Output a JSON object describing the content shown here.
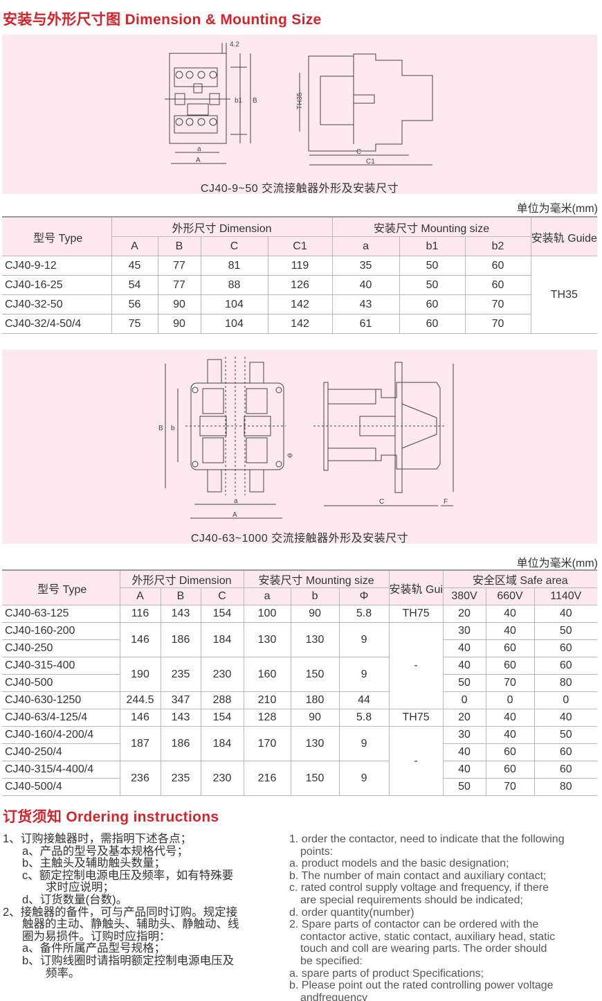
{
  "section1": {
    "title": "安装与外形尺寸图 Dimension & Mounting Size",
    "diagram1": {
      "caption": "CJ40-9~50 交流接触器外形及安装尺寸",
      "labels": {
        "dim_42": "4.2",
        "b1": "b1",
        "B": "B",
        "a": "a",
        "A": "A",
        "TH35": "TH35",
        "C": "C",
        "C1": "C1"
      }
    },
    "unit": "单位为毫米(mm)",
    "table1": {
      "header_type": "型号 Type",
      "header_dimension": "外形尺寸 Dimension",
      "header_mounting": "安装尺寸 Mounting size",
      "header_guide": "安装轨 Guide",
      "sub": [
        "A",
        "B",
        "C",
        "C1",
        "a",
        "b1",
        "b2"
      ],
      "rows": [
        [
          "CJ40-9-12",
          "45",
          "77",
          "81",
          "119",
          "35",
          "50",
          "60"
        ],
        [
          "CJ40-16-25",
          "54",
          "77",
          "88",
          "126",
          "40",
          "50",
          "60"
        ],
        [
          "CJ40-32-50",
          "56",
          "90",
          "104",
          "142",
          "43",
          "60",
          "70"
        ],
        [
          "CJ40-32/4-50/4",
          "75",
          "90",
          "104",
          "142",
          "61",
          "60",
          "70"
        ]
      ],
      "guide": "TH35"
    }
  },
  "section2": {
    "diagram2": {
      "caption": "CJ40-63~1000 交流接触器外形及安装尺寸",
      "labels": {
        "B": "B",
        "b": "b",
        "phi": "Φ",
        "a": "a",
        "A": "A",
        "C": "C",
        "F": "F"
      }
    },
    "unit": "单位为毫米(mm)",
    "table2": {
      "header_type": "型号 Type",
      "header_dimension": "外形尺寸 Dimension",
      "header_mounting": "安装尺寸 Mounting size",
      "header_guide": "安装轨 Guide",
      "header_safe": "安全区域 Safe area",
      "sub": [
        "A",
        "B",
        "C",
        "a",
        "b",
        "Φ",
        "380V",
        "660V",
        "1140V"
      ],
      "models": [
        "CJ40-63-125",
        "CJ40-160-200",
        "CJ40-250",
        "CJ40-315-400",
        "CJ40-500",
        "CJ40-630-1250",
        "CJ40-63/4-125/4",
        "CJ40-160/4-200/4",
        "CJ40-250/4",
        "CJ40-315/4-400/4",
        "CJ40-500/4"
      ],
      "dim_groups": [
        {
          "span": 1,
          "values": [
            "116",
            "143",
            "154",
            "100",
            "90",
            "5.8"
          ]
        },
        {
          "span": 2,
          "values": [
            "146",
            "186",
            "184",
            "130",
            "130",
            "9"
          ]
        },
        {
          "span": 2,
          "values": [
            "190",
            "235",
            "230",
            "160",
            "150",
            "9"
          ]
        },
        {
          "span": 1,
          "values": [
            "244.5",
            "347",
            "288",
            "210",
            "180",
            "44"
          ]
        },
        {
          "span": 1,
          "values": [
            "146",
            "143",
            "154",
            "128",
            "90",
            "5.8"
          ]
        },
        {
          "span": 2,
          "values": [
            "187",
            "186",
            "184",
            "170",
            "130",
            "9"
          ]
        },
        {
          "span": 2,
          "values": [
            "236",
            "235",
            "230",
            "216",
            "150",
            "9"
          ]
        }
      ],
      "guide_groups": [
        {
          "span": 1,
          "value": "TH75"
        },
        {
          "span": 5,
          "value": "-"
        },
        {
          "span": 1,
          "value": "TH75"
        },
        {
          "span": 4,
          "value": "-"
        }
      ],
      "safe": [
        [
          "20",
          "40",
          "40"
        ],
        [
          "30",
          "40",
          "50"
        ],
        [
          "40",
          "60",
          "60"
        ],
        [
          "40",
          "60",
          "60"
        ],
        [
          "50",
          "70",
          "80"
        ],
        [
          "0",
          "0",
          "0"
        ],
        [
          "20",
          "40",
          "40"
        ],
        [
          "30",
          "40",
          "50"
        ],
        [
          "40",
          "60",
          "60"
        ],
        [
          "40",
          "60",
          "60"
        ],
        [
          "50",
          "70",
          "80"
        ]
      ]
    }
  },
  "ordering": {
    "title": "订货须知 Ordering instructions",
    "cn": [
      {
        "cls": "",
        "text": "1、订购接触器时，需指明下述各点；"
      },
      {
        "cls": "ind",
        "text": "a、产品的型号及基本规格代号；"
      },
      {
        "cls": "ind",
        "text": "b、主触头及辅助触头数量；"
      },
      {
        "cls": "ind",
        "text": "c、额定控制电源电压及频率，如有特殊要"
      },
      {
        "cls": "ind2",
        "text": "求时应说明；"
      },
      {
        "cls": "ind",
        "text": "d、订货数量(台数)。"
      },
      {
        "cls": "",
        "text": "2、接触器的备件，可与产品同时订购。规定接"
      },
      {
        "cls": "ind",
        "text": "触器的主动、静触头、辅助头、静触动、线"
      },
      {
        "cls": "ind",
        "text": "圈为易损件。订购时应指明："
      },
      {
        "cls": "ind",
        "text": "a、备件所属产品型号规格；"
      },
      {
        "cls": "ind",
        "text": "b、订购线圈时请指明额定控制电源电压及"
      },
      {
        "cls": "ind2",
        "text": "频率。"
      }
    ],
    "en": [
      {
        "cls": "",
        "text": "1. order the contactor, need to indicate that the following"
      },
      {
        "cls": "ind3",
        "text": "points:"
      },
      {
        "cls": "",
        "text": "a. product models and the basic designation;"
      },
      {
        "cls": "",
        "text": "b. The number of main contact and auxiliary contact;"
      },
      {
        "cls": "",
        "text": "c. rated control supply voltage and frequency, if there"
      },
      {
        "cls": "ind3",
        "text": "are special requirements should be indicated;"
      },
      {
        "cls": "",
        "text": "d. order quantity(number)"
      },
      {
        "cls": "",
        "text": "2. Spare parts of contactor can be ordered with the"
      },
      {
        "cls": "ind3",
        "text": "contactor active, static contact, auxiliary head, static"
      },
      {
        "cls": "ind3",
        "text": "touch and coll are wearing parts. The order should"
      },
      {
        "cls": "ind3",
        "text": "be specified:"
      },
      {
        "cls": "",
        "text": "a. spare parts of product Specifications;"
      },
      {
        "cls": "",
        "text": "b. Please point out the rated controlling power voltage"
      },
      {
        "cls": "ind3",
        "text": "andfrequency"
      }
    ]
  },
  "colors": {
    "heading": "#d4232b",
    "panel": "#fce9f0",
    "header_bg": "#fce9f0"
  }
}
